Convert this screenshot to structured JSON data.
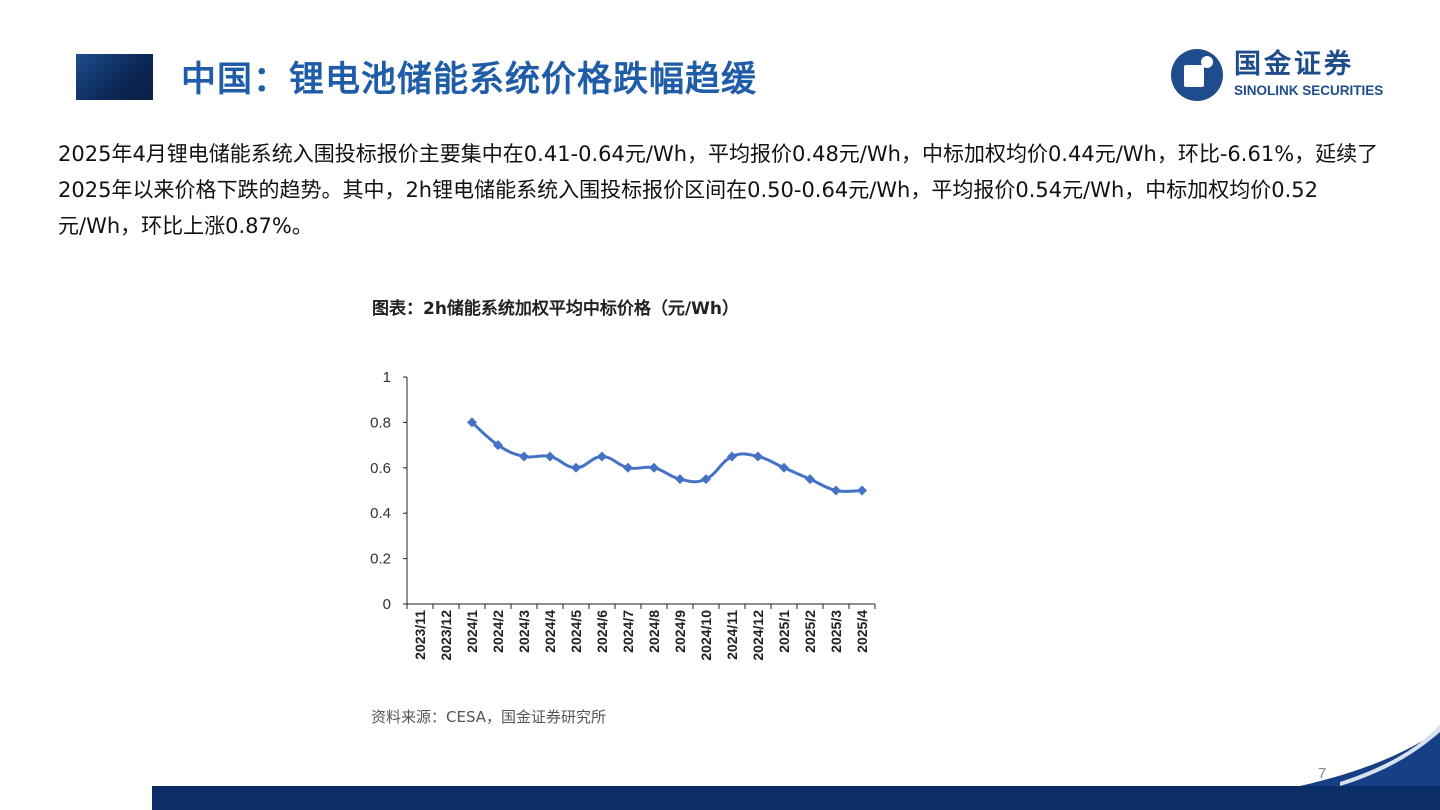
{
  "header": {
    "title": "中国：锂电池储能系统价格跌幅趋缓"
  },
  "logo": {
    "cn": "国金证券",
    "en": "SINOLINK SECURITIES"
  },
  "body": {
    "paragraph": "2025年4月锂电储能系统入围投标报价主要集中在0.41-0.64元/Wh，平均报价0.48元/Wh，中标加权均价0.44元/Wh，环比-6.61%，延续了2025年以来价格下跌的趋势。其中，2h锂电储能系统入围投标报价区间在0.50-0.64元/Wh，平均报价0.54元/Wh，中标加权均价0.52元/Wh，环比上涨0.87%。"
  },
  "chart_data": {
    "type": "line",
    "title": "图表：2h储能系统加权平均中标价格（元/Wh）",
    "categories": [
      "2023/11",
      "2023/12",
      "2024/1",
      "2024/2",
      "2024/3",
      "2024/4",
      "2024/5",
      "2024/6",
      "2024/7",
      "2024/8",
      "2024/9",
      "2024/10",
      "2024/11",
      "2024/12",
      "2025/1",
      "2025/2",
      "2025/3",
      "2025/4"
    ],
    "series": [
      {
        "values": [
          null,
          null,
          0.8,
          0.7,
          0.65,
          0.65,
          0.6,
          0.65,
          0.6,
          0.6,
          0.55,
          0.55,
          0.65,
          0.65,
          0.6,
          0.55,
          0.5,
          0.5
        ]
      }
    ],
    "yticks": [
      "1",
      "0.8",
      "0.6",
      "0.4",
      "0.2",
      "0"
    ],
    "ylim": [
      0,
      1
    ],
    "grid": false,
    "legend": "none",
    "color": "#4472c4"
  },
  "source": "资料来源：CESA，国金证券研究所",
  "page_number": "7",
  "colors": {
    "brand": "#1f4c8c",
    "title": "#1f5da8"
  }
}
